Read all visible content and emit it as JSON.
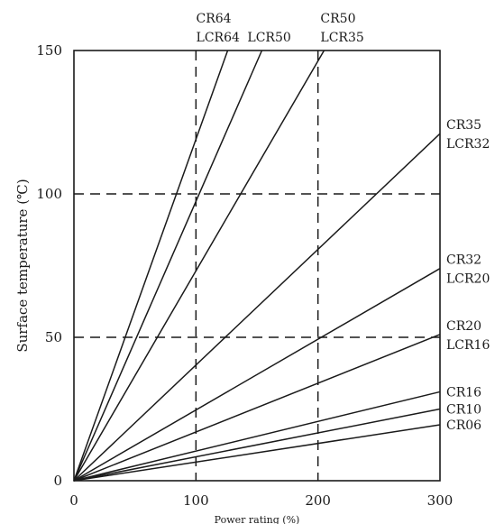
{
  "chart_data": {
    "type": "line",
    "title": "",
    "xlabel": "Power rating (%)",
    "ylabel": "Surface temperature (℃)",
    "xlim": [
      0,
      300
    ],
    "ylim": [
      0,
      150
    ],
    "xticks": [
      "0",
      "100",
      "200",
      "300"
    ],
    "yticks": [
      "0",
      "50",
      "100",
      "150"
    ],
    "reference_lines": {
      "x": [
        100,
        200
      ],
      "y": [
        50,
        100
      ]
    },
    "grid": false,
    "legend": "inline labels at line ends",
    "series": [
      {
        "label_lines": [
          "CR64",
          "LCR64"
        ],
        "x": [
          0,
          126
        ],
        "y": [
          0,
          150
        ]
      },
      {
        "label_lines": [
          "LCR50"
        ],
        "x": [
          0,
          154
        ],
        "y": [
          0,
          150
        ]
      },
      {
        "label_lines": [
          "CR50",
          "LCR35"
        ],
        "x": [
          0,
          205
        ],
        "y": [
          0,
          150
        ]
      },
      {
        "label_lines": [
          "CR35",
          "LCR32"
        ],
        "x": [
          0,
          300
        ],
        "y": [
          0,
          121
        ]
      },
      {
        "label_lines": [
          "CR32",
          "LCR20"
        ],
        "x": [
          0,
          300
        ],
        "y": [
          0,
          74
        ]
      },
      {
        "label_lines": [
          "CR20",
          "LCR16"
        ],
        "x": [
          0,
          300
        ],
        "y": [
          0,
          51
        ]
      },
      {
        "label_lines": [
          "CR16"
        ],
        "x": [
          0,
          300
        ],
        "y": [
          0,
          31
        ]
      },
      {
        "label_lines": [
          "CR10"
        ],
        "x": [
          0,
          300
        ],
        "y": [
          0,
          25
        ]
      },
      {
        "label_lines": [
          "CR06"
        ],
        "x": [
          0,
          300
        ],
        "y": [
          0,
          19.5
        ]
      }
    ]
  }
}
